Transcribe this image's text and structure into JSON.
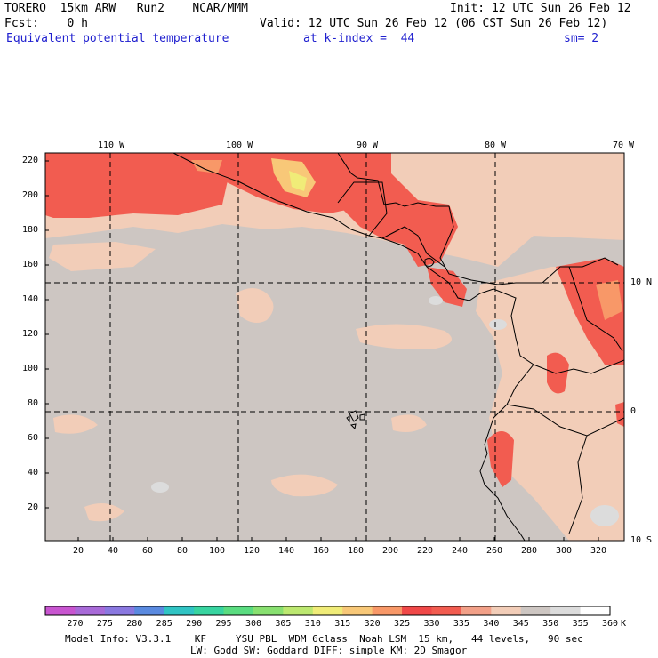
{
  "header": {
    "model": "TORERO  15km ARW   Run2    NCAR/MMM",
    "init": "Init: 12 UTC Sun 26 Feb 12",
    "fcst": "Fcst:    0 h",
    "valid": "Valid: 12 UTC Sun 26 Feb 12 (06 CST Sun 26 Feb 12)",
    "field": "Equivalent potential temperature",
    "kindex": "at k-index =  44",
    "sm": "sm= 2"
  },
  "map": {
    "top_lon_labels": [
      "110 W",
      "100 W",
      "90 W",
      "80 W",
      "70 W"
    ],
    "right_lat_labels": [
      "10 N",
      "0",
      "10 S"
    ],
    "left_y_ticks": [
      "220",
      "200",
      "180",
      "160",
      "140",
      "120",
      "100",
      "80",
      "60",
      "40",
      "20"
    ],
    "bottom_x_ticks": [
      "20",
      "40",
      "60",
      "80",
      "100",
      "120",
      "140",
      "160",
      "180",
      "200",
      "220",
      "240",
      "260",
      "280",
      "300",
      "320"
    ]
  },
  "colorbar": {
    "labels": [
      "270",
      "275",
      "280",
      "285",
      "290",
      "295",
      "300",
      "305",
      "310",
      "315",
      "320",
      "325",
      "330",
      "335",
      "340",
      "345",
      "350",
      "355",
      "360"
    ],
    "unit": "K",
    "colors": [
      "#c855d0",
      "#a86ad8",
      "#8a78e0",
      "#5a8ae0",
      "#30c4c4",
      "#38d4a0",
      "#5adc80",
      "#88e070",
      "#bce870",
      "#f0ec78",
      "#f8c878",
      "#f89868",
      "#f04848",
      "#f25c50",
      "#f2a088",
      "#f2cdb8",
      "#cdc6c2",
      "#dcdcdc",
      "#ffffff"
    ]
  },
  "footer": {
    "line1": "Model Info: V3.3.1    KF     YSU PBL  WDM 6class  Noah LSM  15 km,   44 levels,   90 sec",
    "line2": "LW: Godd SW: Goddard DIFF: simple KM: 2D Smagor"
  }
}
